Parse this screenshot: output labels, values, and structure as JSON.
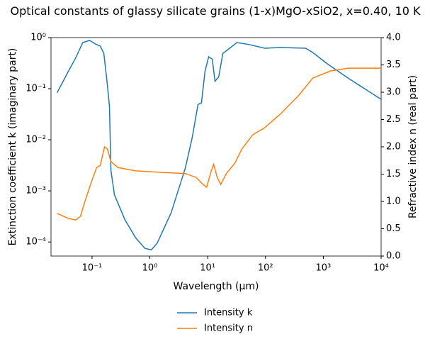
{
  "chart_data": {
    "type": "line",
    "title": "Optical constants of glassy silicate grains (1-x)MgO-xSiO2, x=0.40, 10 K",
    "x_label": "Wavelength (μm)",
    "y_label": "Extinction coefficient k (imaginary part)",
    "y2_label": "Refractive index n (real part)",
    "xscale": "log",
    "yscale": "log",
    "xlim": [
      0.0195,
      10000
    ],
    "xticks": [
      {
        "value": 0.1,
        "label": "10⁻¹"
      },
      {
        "value": 1,
        "label": "10⁰"
      },
      {
        "value": 10,
        "label": "10¹"
      },
      {
        "value": 100,
        "label": "10²"
      },
      {
        "value": 1000,
        "label": "10³"
      },
      {
        "value": 10000,
        "label": "10⁴"
      }
    ],
    "ylim": [
      5.3e-05,
      1
    ],
    "yticks": [
      {
        "value": 0.0001,
        "label": "10⁻⁴"
      },
      {
        "value": 0.001,
        "label": "10⁻³"
      },
      {
        "value": 0.01,
        "label": "10⁻²"
      },
      {
        "value": 0.1,
        "label": "10⁻¹"
      },
      {
        "value": 1,
        "label": "10⁰"
      }
    ],
    "y2lim": [
      0,
      4
    ],
    "y2ticks": [
      {
        "value": 0,
        "label": "0.0"
      },
      {
        "value": 0.5,
        "label": "0.5"
      },
      {
        "value": 1,
        "label": "1.0"
      },
      {
        "value": 1.5,
        "label": "1.5"
      },
      {
        "value": 2,
        "label": "2.0"
      },
      {
        "value": 2.5,
        "label": "2.5"
      },
      {
        "value": 3,
        "label": "3.0"
      },
      {
        "value": 3.5,
        "label": "3.5"
      },
      {
        "value": 4,
        "label": "4.0"
      }
    ],
    "legend": "lower center",
    "series": [
      {
        "name": "Intensity k",
        "color": "#1f77b4",
        "x": [
          0.0248,
          0.039,
          0.052,
          0.069,
          0.091,
          0.114,
          0.139,
          0.16,
          0.184,
          0.2,
          0.212,
          0.244,
          0.372,
          0.569,
          0.82,
          1.06,
          1.33,
          2.33,
          4.1,
          5.4,
          6.8,
          7.8,
          9.0,
          10.4,
          12,
          13.4,
          15.5,
          18.3,
          22.3,
          32,
          52,
          97,
          185,
          497,
          659,
          1160,
          2700,
          10000
        ],
        "values": [
          0.083,
          0.22,
          0.4,
          0.8,
          0.88,
          0.75,
          0.68,
          0.49,
          0.117,
          0.045,
          0.0025,
          0.00083,
          0.00027,
          0.00012,
          7.5e-05,
          7e-05,
          9.4e-05,
          0.00037,
          0.0028,
          0.011,
          0.049,
          0.053,
          0.22,
          0.42,
          0.38,
          0.14,
          0.17,
          0.49,
          0.58,
          0.8,
          0.73,
          0.62,
          0.64,
          0.62,
          0.51,
          0.31,
          0.16,
          0.062
        ]
      },
      {
        "name": "Intensity n",
        "color": "#ff7f0e",
        "axis": "y2",
        "x": [
          0.0248,
          0.039,
          0.052,
          0.063,
          0.0746,
          0.099,
          0.12,
          0.139,
          0.164,
          0.184,
          0.212,
          0.281,
          0.569,
          1.76,
          4.1,
          6.3,
          8.3,
          9.6,
          11.6,
          12.7,
          14.6,
          16.8,
          21,
          29.5,
          39,
          60,
          97,
          185,
          374,
          659,
          1334,
          2700,
          10000
        ],
        "values": [
          0.78,
          0.69,
          0.66,
          0.73,
          0.99,
          1.38,
          1.62,
          1.66,
          2.0,
          1.96,
          1.73,
          1.62,
          1.56,
          1.53,
          1.51,
          1.44,
          1.31,
          1.26,
          1.57,
          1.68,
          1.44,
          1.31,
          1.51,
          1.7,
          1.96,
          2.22,
          2.35,
          2.61,
          2.94,
          3.26,
          3.39,
          3.44,
          3.44
        ]
      }
    ]
  }
}
